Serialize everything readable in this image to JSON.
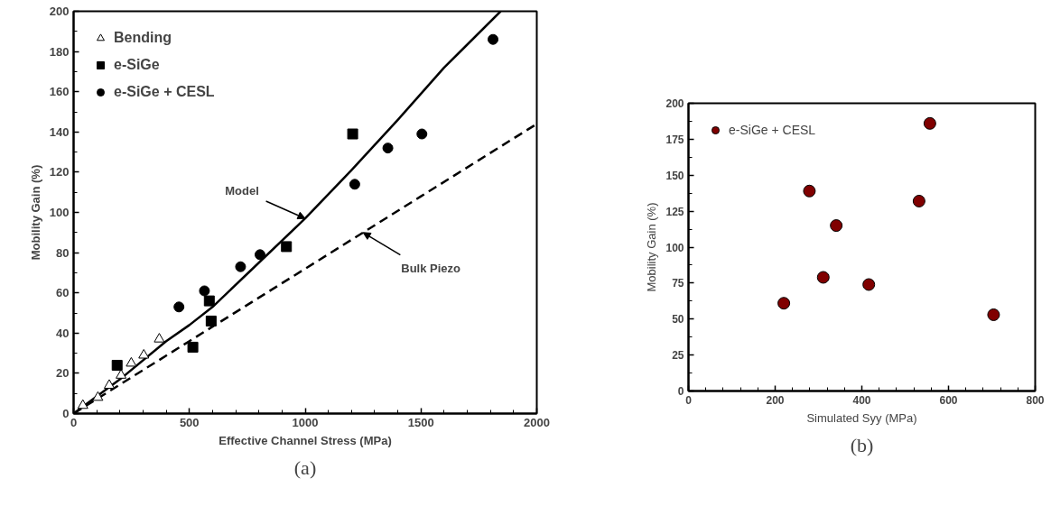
{
  "chart_data": [
    {
      "type": "scatter",
      "xlabel": "Effective Channel Stress (MPa)",
      "ylabel": "Mobility Gain (%)",
      "xlim": [
        0,
        2000
      ],
      "ylim": [
        0,
        200
      ],
      "xticks": [
        0,
        500,
        1000,
        1500,
        2000
      ],
      "yticks": [
        0,
        20,
        40,
        60,
        80,
        100,
        120,
        140,
        160,
        180,
        200
      ],
      "grid": false,
      "legend": "top left",
      "series": [
        {
          "name": "Bending",
          "color": "#000000",
          "marker": "triangle",
          "x": [
            40,
            105,
            154,
            205,
            249,
            303,
            370
          ],
          "values": [
            4,
            8,
            14,
            19,
            25,
            29,
            37
          ]
        },
        {
          "name": "e-SiGe",
          "color": "#000000",
          "marker": "square",
          "x": [
            188,
            515,
            586,
            594,
            919,
            1205
          ],
          "values": [
            24,
            33,
            56,
            46,
            83,
            139
          ]
        },
        {
          "name": "e-SiGe + CESL",
          "color": "#000000",
          "marker": "circle",
          "x": [
            455,
            565,
            721,
            805,
            1214,
            1357,
            1504,
            1811
          ],
          "values": [
            53,
            61,
            73,
            79,
            114,
            132,
            139,
            186
          ]
        },
        {
          "type": "line",
          "color": "#000000",
          "line_style": "solid",
          "marker": "none",
          "x": [
            0,
            200,
            400,
            500,
            600,
            800,
            1000,
            1200,
            1400,
            1600,
            1844
          ],
          "values": [
            0,
            17,
            36,
            44,
            53,
            75,
            97,
            121,
            146,
            172,
            200
          ]
        },
        {
          "type": "line",
          "color": "#000000",
          "line_style": "dashed",
          "marker": "none",
          "x": [
            0,
            500,
            1000,
            1500,
            2000
          ],
          "values": [
            0,
            36,
            72,
            108,
            144
          ]
        }
      ],
      "annotations": [
        {
          "text": "Model",
          "x": 1000,
          "y": 97
        },
        {
          "text": "Bulk Piezo",
          "x": 1250,
          "y": 90
        },
        "(a)"
      ]
    },
    {
      "type": "scatter",
      "xlabel": "Simulated Syy (MPa)",
      "ylabel": "Mobility Gain (%)",
      "xlim": [
        0,
        800
      ],
      "ylim": [
        0,
        200
      ],
      "xticks": [
        0,
        200,
        400,
        600,
        800
      ],
      "yticks": [
        0,
        25,
        50,
        75,
        100,
        125,
        150,
        175,
        200
      ],
      "grid": false,
      "legend": "top left",
      "series": [
        {
          "name": "e-SiGe + CESL",
          "color": "#800000",
          "marker": "circle",
          "x": [
            220,
            279,
            311,
            341,
            416,
            532,
            557,
            704
          ],
          "values": [
            61,
            139,
            79,
            115,
            74,
            132,
            186,
            53
          ]
        }
      ],
      "annotations": [
        "(b)"
      ]
    }
  ]
}
